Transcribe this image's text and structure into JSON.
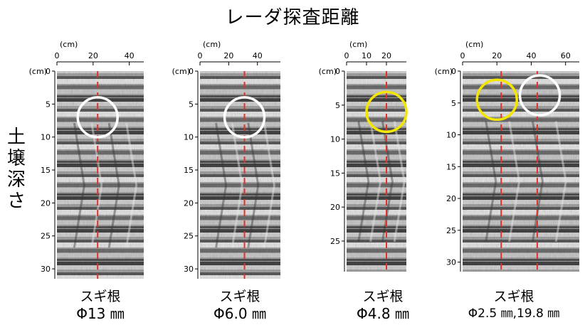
{
  "title": "レーダ探査距離",
  "y_axis_label_chars": [
    "土",
    "壌",
    "深",
    "さ"
  ],
  "unit_cm": "(cm)",
  "colors": {
    "marker_line": "#e0322c",
    "circle_white": "#ffffff",
    "circle_yellow": "#f3e600",
    "radar_bg": "#9a9a9a"
  },
  "panels": [
    {
      "x_ticks": [
        0,
        20,
        40
      ],
      "x_max": 48,
      "y_ticks": [
        0,
        5,
        10,
        15,
        20,
        25,
        30
      ],
      "y_max": 31.5,
      "root_lines_cm": [
        22.5
      ],
      "circles": [
        {
          "cx": 22.5,
          "cy": 7,
          "color": "white"
        }
      ],
      "caption1": "スギ根",
      "caption2": "Φ13 ㎜"
    },
    {
      "x_ticks": [
        0,
        20,
        40
      ],
      "x_max": 56,
      "y_ticks": [
        0,
        5,
        10,
        15,
        20,
        25,
        30
      ],
      "y_max": 31.5,
      "root_lines_cm": [
        31
      ],
      "circles": [
        {
          "cx": 31,
          "cy": 7,
          "color": "white"
        }
      ],
      "caption1": "スギ根",
      "caption2": "Φ6.0 ㎜"
    },
    {
      "x_ticks": [
        0,
        10,
        20
      ],
      "x_max": 30,
      "y_ticks": [
        0,
        5,
        10,
        15,
        20,
        25
      ],
      "y_max": 29.5,
      "root_lines_cm": [
        20
      ],
      "circles": [
        {
          "cx": 20,
          "cy": 6,
          "color": "yellow"
        }
      ],
      "caption1": "スギ根",
      "caption2": "Φ4.8 ㎜"
    },
    {
      "x_ticks": [
        0,
        20,
        40,
        60
      ],
      "x_max": 68,
      "y_ticks": [
        0,
        5,
        10,
        15,
        20,
        25,
        30
      ],
      "y_max": 31.5,
      "root_lines_cm": [
        22.5,
        43.5
      ],
      "circles": [
        {
          "cx": 20,
          "cy": 4.5,
          "color": "yellow"
        },
        {
          "cx": 45,
          "cy": 3.8,
          "color": "white"
        }
      ],
      "caption1": "スギ根",
      "caption2": "Φ2.5 ㎜,19.8 ㎜"
    }
  ]
}
